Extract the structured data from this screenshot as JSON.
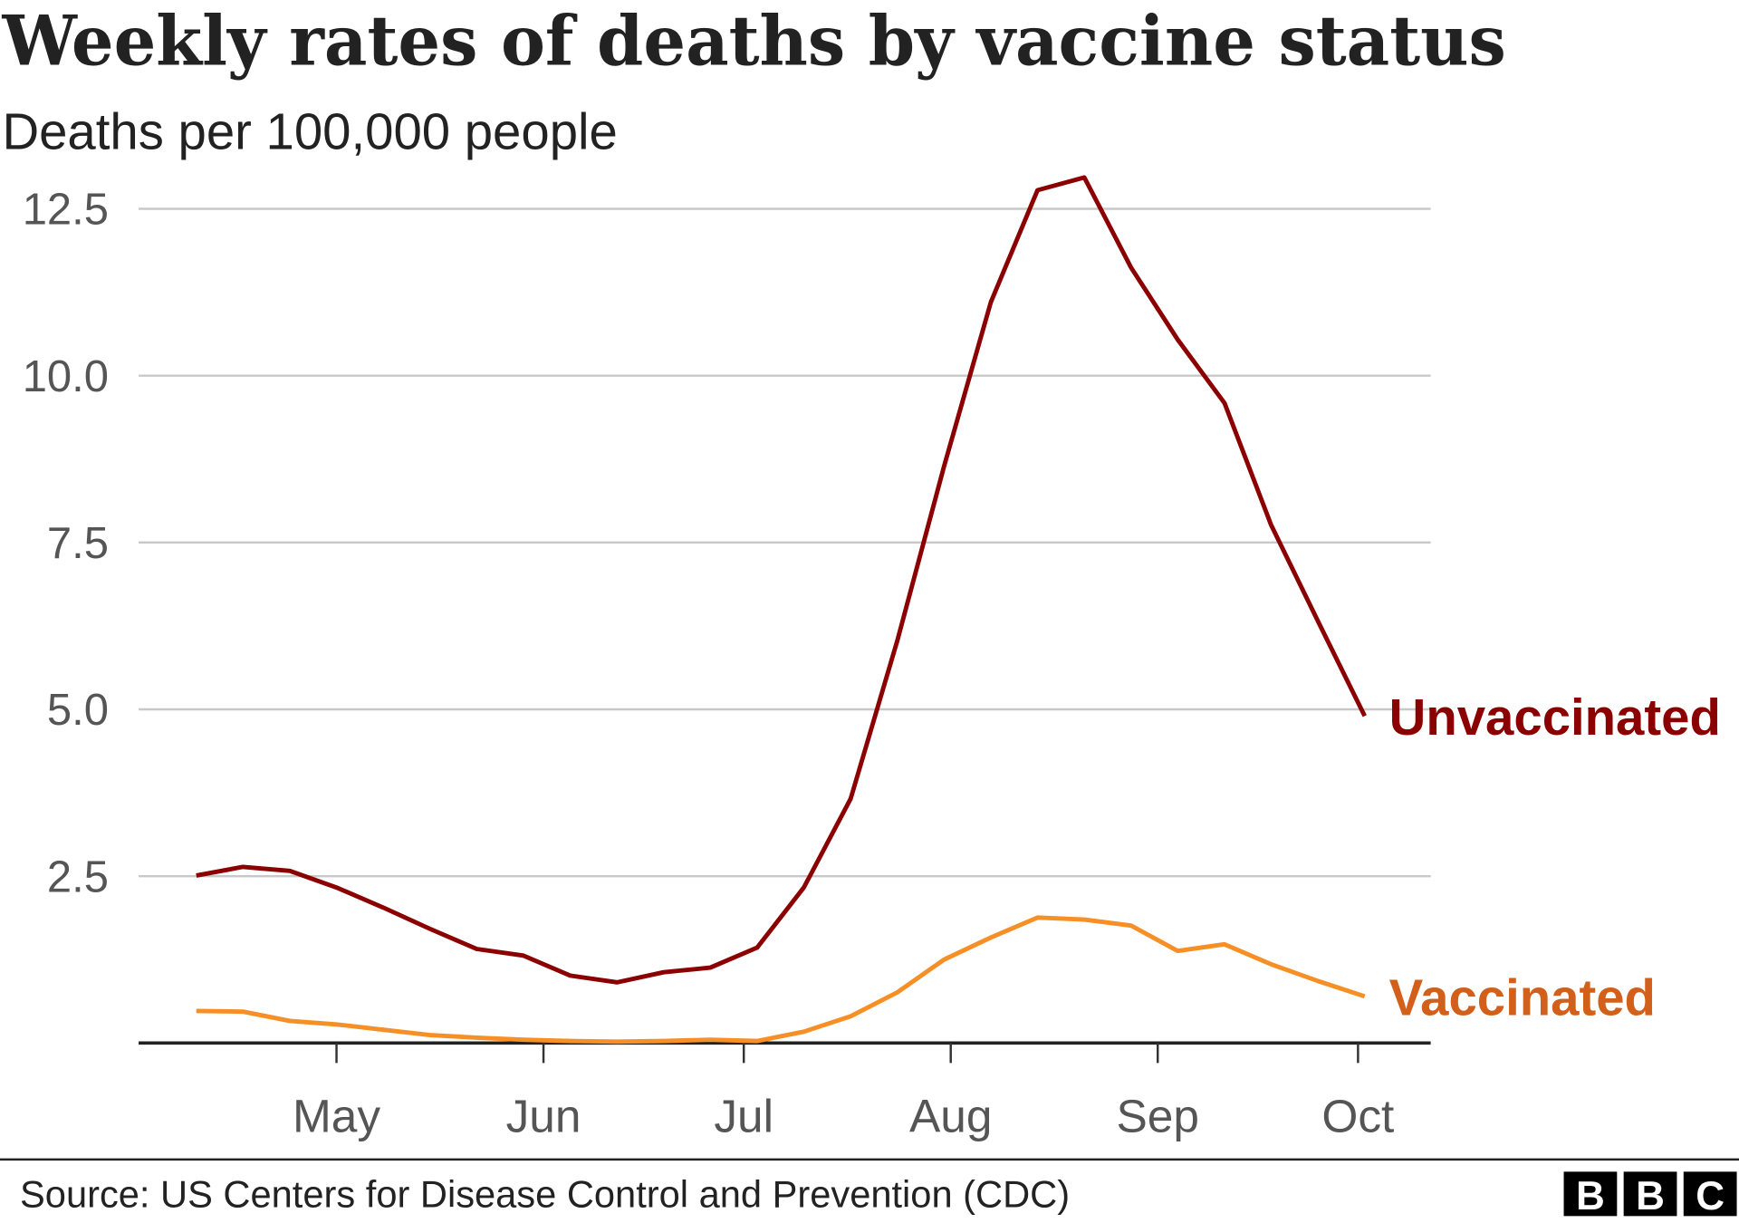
{
  "chart_data": {
    "type": "line",
    "title": "Weekly rates of deaths by vaccine status",
    "subtitle": "Deaths per 100,000 people",
    "xlabel": "",
    "ylabel": "",
    "ylim": [
      0,
      12.5
    ],
    "yticks": [
      "2.5",
      "5.0",
      "7.5",
      "10.0",
      "12.5"
    ],
    "ytick_values": [
      2.5,
      5.0,
      7.5,
      10.0,
      12.5
    ],
    "xticks": [
      {
        "label": "May",
        "date": "May 1"
      },
      {
        "label": "Jun",
        "date": "Jun 1"
      },
      {
        "label": "Jul",
        "date": "Jul 1"
      },
      {
        "label": "Aug",
        "date": "Aug 1"
      },
      {
        "label": "Sep",
        "date": "Sep 1"
      },
      {
        "label": "Oct",
        "date": "Oct 1"
      }
    ],
    "xlim": [
      "Apr 1",
      "Oct 12"
    ],
    "grid": true,
    "legend": "direct labels at line ends",
    "x": [
      "Apr 10",
      "Apr 17",
      "Apr 24",
      "May 1",
      "May 8",
      "May 15",
      "May 22",
      "May 29",
      "Jun 5",
      "Jun 12",
      "Jun 19",
      "Jun 26",
      "Jul 3",
      "Jul 10",
      "Jul 17",
      "Jul 24",
      "Jul 31",
      "Aug 7",
      "Aug 14",
      "Aug 21",
      "Aug 28",
      "Sep 4",
      "Sep 11",
      "Sep 18",
      "Sep 25",
      "Oct 2"
    ],
    "series": [
      {
        "name": "Unvaccinated",
        "color": "#8b0000",
        "label_color": "#8b0000",
        "values": [
          2.51,
          2.64,
          2.58,
          2.33,
          2.03,
          1.71,
          1.41,
          1.31,
          1.01,
          0.91,
          1.06,
          1.13,
          1.43,
          2.33,
          3.66,
          6.03,
          8.64,
          11.1,
          12.78,
          12.97,
          11.62,
          10.54,
          9.59,
          7.76,
          6.32,
          4.9
        ]
      },
      {
        "name": "Vaccinated",
        "color": "#f68f25",
        "label_color": "#d2601a",
        "values": [
          0.48,
          0.47,
          0.33,
          0.28,
          0.2,
          0.12,
          0.08,
          0.05,
          0.03,
          0.02,
          0.03,
          0.05,
          0.03,
          0.17,
          0.4,
          0.76,
          1.25,
          1.58,
          1.88,
          1.85,
          1.76,
          1.38,
          1.48,
          1.18,
          0.93,
          0.7
        ]
      }
    ]
  },
  "footer": {
    "source": "Source: US Centers for Disease Control and Prevention (CDC)",
    "logo": "BBC"
  }
}
